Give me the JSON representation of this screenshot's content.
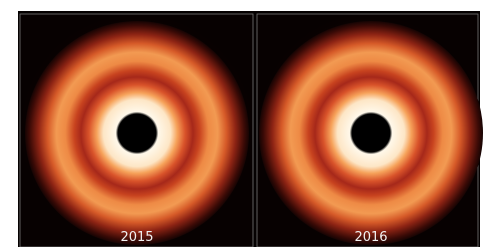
{
  "panels": [
    {
      "label": "2015"
    },
    {
      "label": "2016"
    }
  ]
}
